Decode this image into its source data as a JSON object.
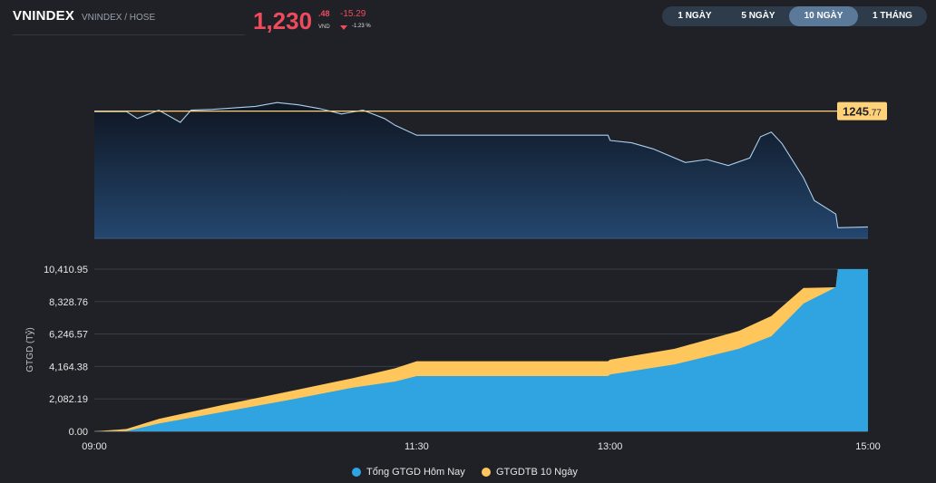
{
  "header": {
    "ticker": "VNINDEX",
    "subtitle": "VNINDEX / HOSE",
    "price_int": "1,230",
    "price_dec": ".48",
    "price_unit": "VND",
    "change": "-15.29",
    "change_pct": "-1.23 %",
    "down_color": "#ef4b5c"
  },
  "tabs": [
    {
      "label": "1 NGÀY",
      "active": false
    },
    {
      "label": "5 NGÀY",
      "active": false
    },
    {
      "label": "10 NGÀY",
      "active": true
    },
    {
      "label": "1 THÁNG",
      "active": false
    }
  ],
  "chart_data": [
    {
      "type": "area",
      "title": "",
      "reference_value": 1245.77,
      "reference_label_int": "1245",
      "reference_label_dec": ".77",
      "reference_color": "#ffd27a",
      "line_color": "#a9d0ef",
      "ylim": [
        1229,
        1248
      ],
      "x": [
        "09:00",
        "09:15",
        "09:20",
        "09:30",
        "09:40",
        "09:45",
        "09:55",
        "10:05",
        "10:15",
        "10:25",
        "10:35",
        "10:45",
        "10:55",
        "11:05",
        "11:15",
        "11:20",
        "11:30",
        "12:59",
        "13:00",
        "13:10",
        "13:20",
        "13:35",
        "13:45",
        "13:55",
        "14:05",
        "14:10",
        "14:15",
        "14:20",
        "14:30",
        "14:35",
        "14:45",
        "14:46",
        "15:00"
      ],
      "values": [
        1245.7,
        1245.7,
        1244.8,
        1245.9,
        1244.3,
        1245.9,
        1246.0,
        1246.2,
        1246.4,
        1246.9,
        1246.6,
        1246.1,
        1245.4,
        1245.9,
        1244.8,
        1243.9,
        1242.6,
        1242.6,
        1241.9,
        1241.6,
        1240.8,
        1239.0,
        1239.4,
        1238.6,
        1239.6,
        1242.4,
        1243.0,
        1241.5,
        1237.0,
        1234.0,
        1232.2,
        1230.4,
        1230.5
      ]
    },
    {
      "type": "area",
      "ylabel": "GTGD (Tỷ)",
      "ylim": [
        0,
        10410.95
      ],
      "yticks": [
        "0.00",
        "2,082.19",
        "4,164.38",
        "6,246.57",
        "8,328.76",
        "10,410.95"
      ],
      "xticks": [
        "09:00",
        "11:30",
        "13:00",
        "15:00"
      ],
      "x": [
        "09:00",
        "09:15",
        "09:30",
        "10:00",
        "10:30",
        "11:00",
        "11:20",
        "11:30",
        "12:59",
        "13:00",
        "13:30",
        "14:00",
        "14:15",
        "14:30",
        "14:45",
        "14:46",
        "15:00"
      ],
      "series": [
        {
          "name": "Tổng GTGD Hôm Nay",
          "color": "#2fa4e0",
          "values": [
            0,
            20,
            500,
            1250,
            2000,
            2800,
            3200,
            3550,
            3550,
            3650,
            4300,
            5300,
            6100,
            8200,
            9250,
            10410.95,
            10410.95
          ]
        },
        {
          "name": "GTGDTB 10 Ngày",
          "color": "#ffc65c",
          "values": [
            0,
            150,
            800,
            1700,
            2550,
            3400,
            4050,
            4500,
            4500,
            4600,
            5300,
            6450,
            7400,
            9200,
            9250,
            10410.95,
            10410.95
          ]
        }
      ]
    }
  ]
}
